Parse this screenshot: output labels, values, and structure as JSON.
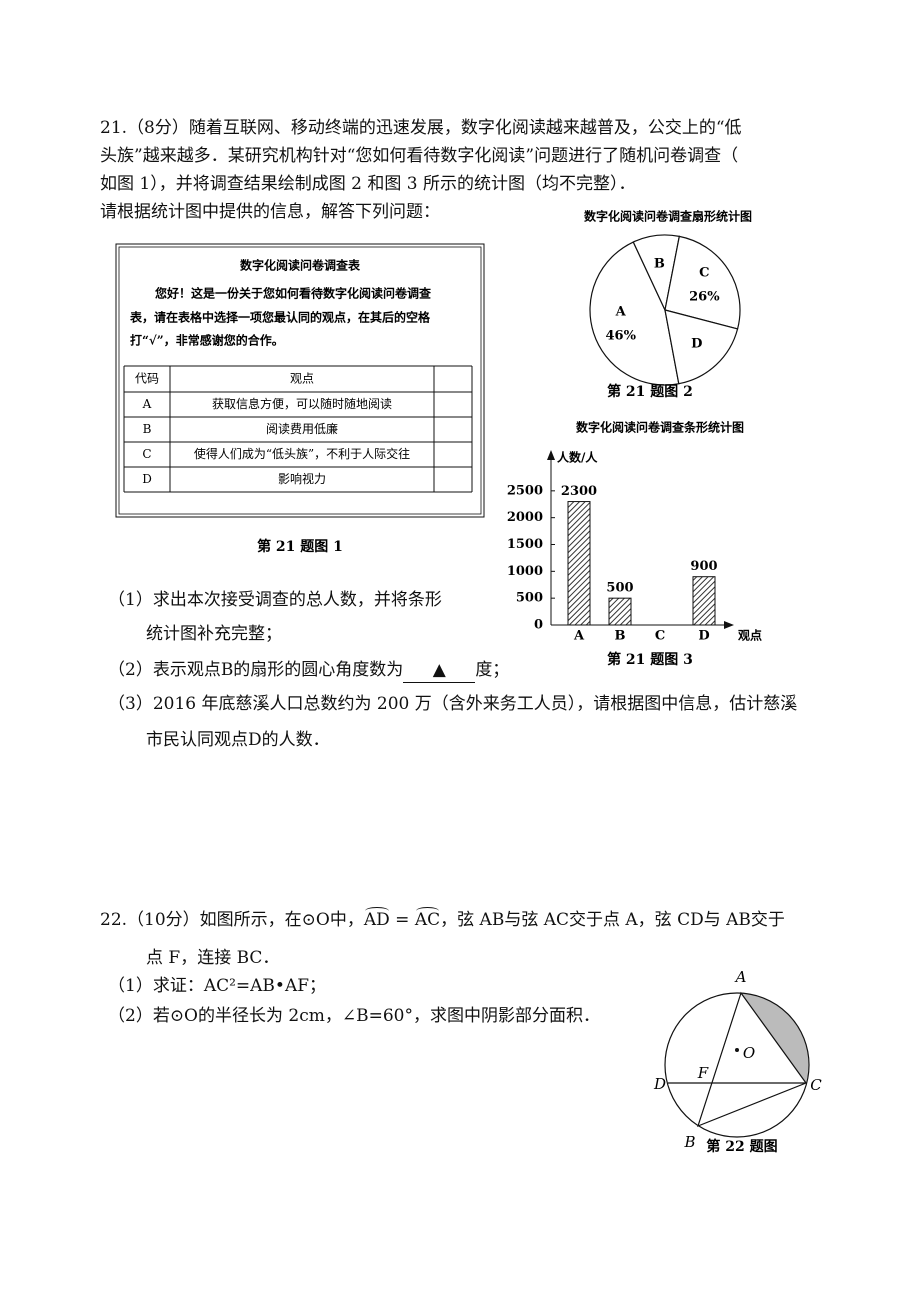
{
  "question_21": {
    "lines": [
      "21.（8分）随着互联网、移动终端的迅速发展，数字化阅读越来越普及，公交上的“低",
      "头族”越来越多．某研究机构针对“您如何看待数字化阅读”问题进行了随机问卷调查（",
      "如图 1），并将调查结果绘制成图 2 和图 3 所示的统计图（均不完整）．",
      "请根据统计图中提供的信息，解答下列问题："
    ],
    "figure_1": {
      "title": "数字化阅读问卷调查表",
      "intro": [
        "您好！这是一份关于您如何看待数字化阅读问卷调查",
        "表，请在表格中选择一项您最认同的观点，在其后的空格",
        "打“√”，非常感谢您的合作。"
      ],
      "table": {
        "header": [
          "代码",
          "观点"
        ],
        "rows": [
          [
            "A",
            "获取信息方便，可以随时随地阅读"
          ],
          [
            "B",
            "阅读费用低廉"
          ],
          [
            "C",
            "使得人们成为“低头族”，不利于人际交往"
          ],
          [
            "D",
            "影响视力"
          ]
        ]
      },
      "caption": "第 21 题图 1"
    },
    "figure_2": {
      "type": "pie",
      "title": "数字化阅读问卷调查扇形统计图",
      "categories": [
        "A",
        "B",
        "C",
        "D"
      ],
      "values": [
        46,
        10,
        26,
        18
      ],
      "value_labels": [
        "46%",
        null,
        "26%",
        null
      ],
      "caption": "第 21 题图 2"
    },
    "figure_3": {
      "type": "bar",
      "title": "数字化阅读问卷调查条形统计图",
      "y_label": "人数/人",
      "x_label": "观点",
      "categories": [
        "A",
        "B",
        "C",
        "D"
      ],
      "values": [
        2300,
        500,
        null,
        900
      ],
      "ylim": [
        0,
        3000
      ],
      "yticks": [
        0,
        500,
        1000,
        1500,
        2000,
        2500
      ],
      "caption": "第 21 题图 3"
    },
    "parts": [
      {
        "lines": [
          "（1）求出本次接受调查的总人数，并将条形",
          "统计图补充完整；"
        ]
      },
      {
        "before": "（2）表示观点B的扇形的圆心角度数为",
        "blank": "▲",
        "after": "度；"
      },
      {
        "lines": [
          "（3）2016 年底慈溪人口总数约为 200 万（含外来务工人员），请根据图中信息，估计慈溪",
          "市民认同观点D的人数．"
        ]
      }
    ]
  },
  "question_22": {
    "line1_a": "22.（10分）如图所示，在⊙O中，",
    "arc_1": "AD",
    "equals": " = ",
    "arc_2": "AC",
    "line1_b": "，弦 AB与弦 AC交于点 A，弦 CD与 AB交于",
    "line2": "点 F，连接 BC．",
    "parts": [
      "（1）求证：AC²=AB•AF；",
      "（2）若⊙O的半径长为 2cm，∠B=60°，求图中阴影部分面积．"
    ],
    "figure": {
      "points": [
        "A",
        "O",
        "D",
        "F",
        "C",
        "B"
      ],
      "caption": "第 22 题图"
    }
  }
}
